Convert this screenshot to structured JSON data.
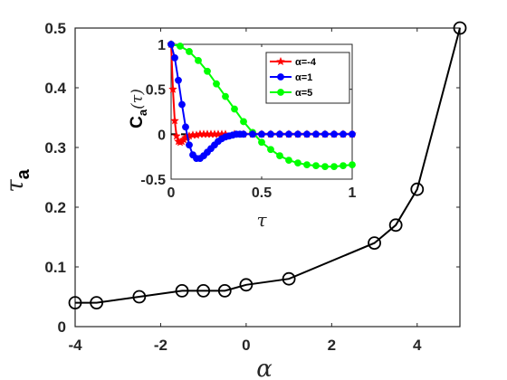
{
  "chart_data": [
    {
      "type": "line",
      "xlabel": "α",
      "ylabel": "τ",
      "ylabel_sub": "a",
      "xlim": [
        -4,
        5
      ],
      "ylim": [
        0,
        0.5
      ],
      "xticks": [
        "-4",
        "-2",
        "0",
        "2",
        "4"
      ],
      "yticks": [
        "0",
        "0.1",
        "0.2",
        "0.3",
        "0.4",
        "0.5"
      ],
      "series": [
        {
          "color": "#000000",
          "marker": "circle",
          "x": [
            -4,
            -3.5,
            -2.5,
            -1.5,
            -1,
            -0.5,
            0,
            1,
            3,
            3.5,
            4,
            5
          ],
          "y": [
            0.04,
            0.04,
            0.05,
            0.06,
            0.06,
            0.06,
            0.07,
            0.08,
            0.14,
            0.17,
            0.23,
            0.5
          ]
        }
      ]
    },
    {
      "type": "line",
      "inset": true,
      "xlabel": "τ",
      "ylabel": "C",
      "ylabel_sub": "a",
      "ylabel_arg": "(τ)",
      "xlim": [
        0,
        1
      ],
      "ylim": [
        -0.5,
        1
      ],
      "xticks": [
        "0",
        "0.5",
        "1"
      ],
      "yticks": [
        "-0.5",
        "0",
        "0.5",
        "1"
      ],
      "reference_line": {
        "y": 0,
        "style": "dashed",
        "color": "#000000"
      },
      "legend_position": "top-right",
      "series": [
        {
          "name": "α=-4",
          "color": "#ff0000",
          "marker": "star",
          "x": [
            0,
            0.01,
            0.02,
            0.03,
            0.04,
            0.05,
            0.06,
            0.07,
            0.08,
            0.09,
            0.1,
            0.12,
            0.14,
            0.16,
            0.18,
            0.2,
            0.22,
            0.24,
            0.26,
            0.28,
            0.3,
            0.35,
            0.4,
            0.45,
            0.5,
            0.55,
            0.6,
            0.65,
            0.7,
            0.75,
            0.8,
            0.85,
            0.9,
            0.95,
            1.0
          ],
          "y": [
            1.0,
            0.5,
            0.15,
            -0.02,
            -0.08,
            -0.09,
            -0.08,
            -0.06,
            -0.04,
            -0.03,
            -0.02,
            -0.01,
            -0.01,
            0,
            0,
            0,
            0,
            0,
            0,
            0,
            0,
            0,
            0,
            0,
            0,
            0,
            0,
            0,
            0,
            0,
            0,
            0,
            0,
            0,
            0
          ]
        },
        {
          "name": "α=1",
          "color": "#0000ff",
          "marker": "circle",
          "x": [
            0,
            0.02,
            0.04,
            0.06,
            0.08,
            0.1,
            0.12,
            0.14,
            0.16,
            0.18,
            0.2,
            0.22,
            0.24,
            0.26,
            0.28,
            0.3,
            0.32,
            0.34,
            0.36,
            0.38,
            0.4,
            0.45,
            0.5,
            0.55,
            0.6,
            0.65,
            0.7,
            0.75,
            0.8,
            0.85,
            0.9,
            0.95,
            1.0
          ],
          "y": [
            1.0,
            0.85,
            0.6,
            0.33,
            0.08,
            -0.12,
            -0.23,
            -0.27,
            -0.27,
            -0.24,
            -0.2,
            -0.16,
            -0.12,
            -0.08,
            -0.05,
            -0.03,
            -0.02,
            -0.01,
            0,
            0,
            0,
            0,
            0,
            0,
            0,
            0,
            0,
            0,
            0,
            0,
            0,
            0,
            0
          ]
        },
        {
          "name": "α=5",
          "color": "#00ff00",
          "marker": "circle",
          "x": [
            0,
            0.05,
            0.1,
            0.15,
            0.2,
            0.25,
            0.3,
            0.35,
            0.4,
            0.45,
            0.5,
            0.55,
            0.6,
            0.65,
            0.7,
            0.75,
            0.8,
            0.85,
            0.9,
            0.95,
            1.0
          ],
          "y": [
            1.0,
            0.98,
            0.92,
            0.82,
            0.7,
            0.56,
            0.42,
            0.28,
            0.14,
            0.02,
            -0.09,
            -0.17,
            -0.24,
            -0.29,
            -0.32,
            -0.34,
            -0.35,
            -0.36,
            -0.36,
            -0.35,
            -0.34
          ]
        }
      ]
    }
  ]
}
